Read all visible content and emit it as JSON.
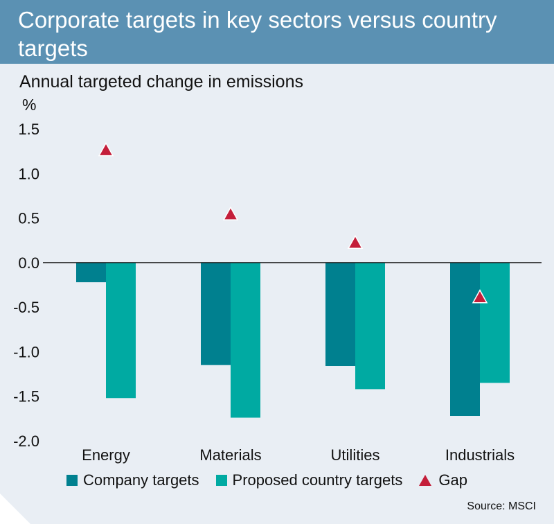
{
  "header": {
    "title": "Corporate targets in key sectors versus country targets"
  },
  "chart_data": {
    "type": "bar",
    "title": "Annual targeted change in emissions",
    "ylabel": "%",
    "xlabel": "",
    "ylim": [
      -2.0,
      1.5
    ],
    "yticks": [
      1.5,
      1.0,
      0.5,
      0.0,
      -0.5,
      -1.0,
      -1.5,
      -2.0
    ],
    "ytick_labels": [
      "1.5",
      "1.0",
      "0.5",
      "0.0",
      "-0.5",
      "-1.0",
      "-1.5",
      "-2.0"
    ],
    "categories": [
      "Energy",
      "Materials",
      "Utilities",
      "Industrials"
    ],
    "series": [
      {
        "name": "Company targets",
        "kind": "bar",
        "color": "#00808f",
        "values": [
          -0.22,
          -1.15,
          -1.16,
          -1.72
        ]
      },
      {
        "name": "Proposed country targets",
        "kind": "bar",
        "color": "#00aaa2",
        "values": [
          -1.52,
          -1.74,
          -1.42,
          -1.35
        ]
      },
      {
        "name": "Gap",
        "kind": "marker",
        "marker": "triangle",
        "color": "#c41e3a",
        "values": [
          1.27,
          0.55,
          0.23,
          -0.38
        ]
      }
    ],
    "grid": false,
    "legend": "bottom"
  },
  "source": "Source: MSCI"
}
